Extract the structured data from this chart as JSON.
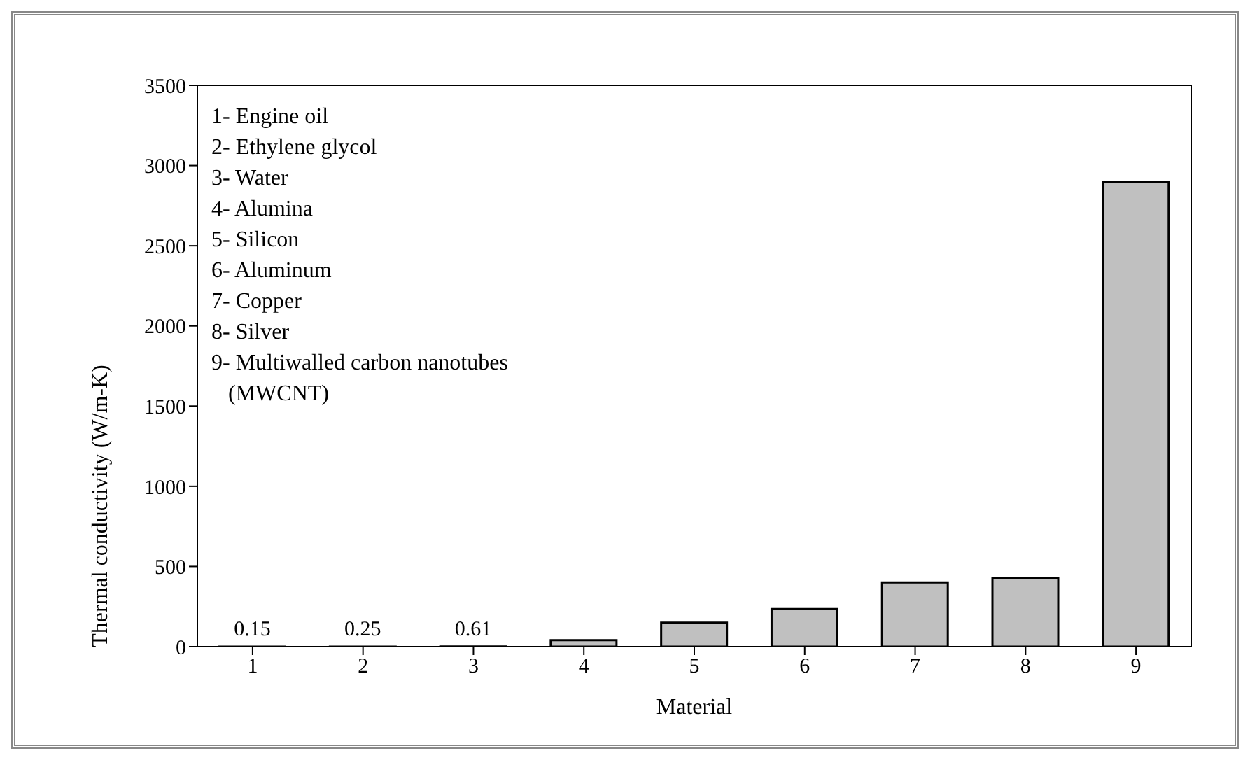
{
  "chart_data": {
    "type": "bar",
    "xlabel": "Material",
    "ylabel": "Thermal conductivity (W/m-K)",
    "categories": [
      "1",
      "2",
      "3",
      "4",
      "5",
      "6",
      "7",
      "8",
      "9"
    ],
    "values": [
      0.15,
      0.25,
      0.61,
      40,
      150,
      235,
      400,
      430,
      2900
    ],
    "value_labels": [
      "0.15",
      "0.25",
      "0.61",
      null,
      null,
      null,
      null,
      null,
      null
    ],
    "color": "#c0c0c0",
    "ylim": [
      0,
      3500
    ],
    "yticks": [
      0,
      500,
      1000,
      1500,
      2000,
      2500,
      3000,
      3500
    ],
    "grid": false,
    "annotations": [
      "1- Engine oil",
      "2- Ethylene glycol",
      "3- Water",
      "4- Alumina",
      "5- Silicon",
      "6- Aluminum",
      "7- Copper",
      "8- Silver",
      "9- Multiwalled carbon nanotubes",
      "   (MWCNT)"
    ]
  }
}
